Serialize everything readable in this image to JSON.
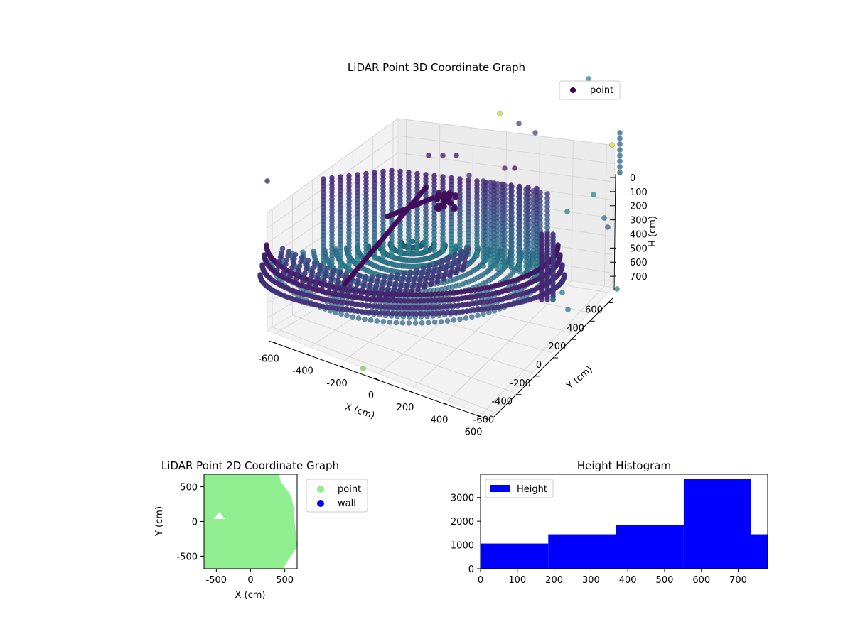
{
  "chart_data": [
    {
      "type": "scatter",
      "title": "LiDAR Point 3D Coordinate Graph",
      "xlabel": "X (cm)",
      "ylabel": "Y (cm)",
      "zlabel": "H (cm)",
      "x_ticks": [
        "-600",
        "-400",
        "-200",
        "0",
        "200",
        "400",
        "600"
      ],
      "y_ticks": [
        "-600",
        "-400",
        "-200",
        "0",
        "200",
        "400",
        "600"
      ],
      "z_ticks": [
        "0",
        "100",
        "200",
        "300",
        "400",
        "500",
        "600",
        "700"
      ],
      "xlim": [
        -650,
        650
      ],
      "ylim": [
        -650,
        650
      ],
      "zlim": [
        0,
        780
      ],
      "z_inverted": true,
      "colormap": "viridis",
      "legend": {
        "entries": [
          {
            "label": "point",
            "color": "#440154"
          }
        ],
        "position": "upper-right"
      },
      "grid": true
    },
    {
      "type": "scatter",
      "title": "LiDAR Point 2D Coordinate Graph",
      "xlabel": "X (cm)",
      "ylabel": "Y (cm)",
      "x_ticks": [
        "-500",
        "0",
        "500"
      ],
      "y_ticks": [
        "500",
        "0",
        "-500"
      ],
      "xlim": [
        -680,
        680
      ],
      "ylim": [
        -680,
        680
      ],
      "legend": {
        "entries": [
          {
            "label": "point",
            "color": "#90ee90"
          },
          {
            "label": "wall",
            "color": "#0000ff"
          }
        ],
        "position": "outside-right"
      },
      "grid": false
    },
    {
      "type": "bar",
      "title": "Height Histogram",
      "xlabel": "",
      "ylabel": "",
      "x_ticks": [
        "0",
        "100",
        "200",
        "300",
        "400",
        "500",
        "600",
        "700"
      ],
      "y_ticks": [
        "0",
        "1000",
        "2000",
        "3000"
      ],
      "xlim": [
        0,
        780
      ],
      "ylim": [
        0,
        3980
      ],
      "bins": [
        {
          "start": 0,
          "end": 184,
          "count": 1060
        },
        {
          "start": 184,
          "end": 368,
          "count": 1450
        },
        {
          "start": 368,
          "end": 552,
          "count": 1850
        },
        {
          "start": 552,
          "end": 735,
          "count": 3800
        },
        {
          "start": 735,
          "end": 780,
          "count": 1450
        }
      ],
      "color": "#0000ff",
      "legend": {
        "entries": [
          {
            "label": "Height",
            "color": "#0000ff"
          }
        ],
        "position": "upper-left"
      },
      "grid": false
    }
  ]
}
